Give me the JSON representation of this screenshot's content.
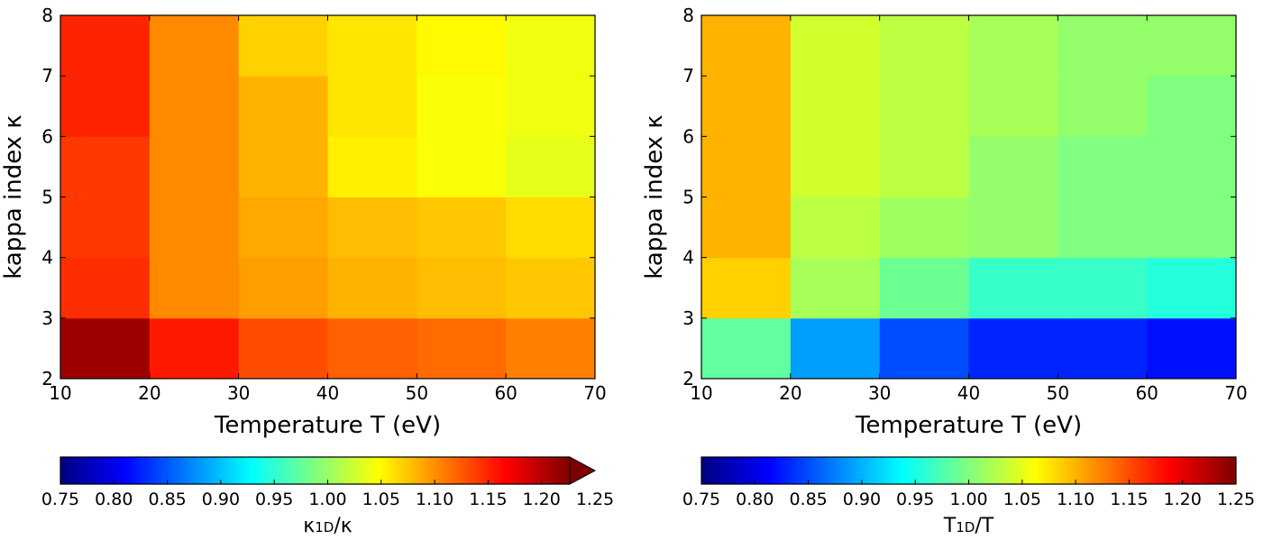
{
  "chart_data": [
    {
      "type": "heatmap",
      "xlabel": "Temperature T (eV)",
      "ylabel": "kappa index κ",
      "x_edges": [
        10,
        20,
        30,
        40,
        50,
        60,
        70
      ],
      "y_edges": [
        2,
        3,
        4,
        5,
        6,
        7,
        8
      ],
      "xlim": [
        10,
        70
      ],
      "ylim": [
        2,
        8
      ],
      "xticks": [
        "10",
        "20",
        "30",
        "40",
        "50",
        "60",
        "70"
      ],
      "yticks": [
        "2",
        "3",
        "4",
        "5",
        "6",
        "7",
        "8"
      ],
      "values": [
        [
          1.235,
          1.175,
          1.15,
          1.14,
          1.135,
          1.125
        ],
        [
          1.165,
          1.12,
          1.11,
          1.1,
          1.095,
          1.09
        ],
        [
          1.16,
          1.12,
          1.105,
          1.095,
          1.09,
          1.08
        ],
        [
          1.16,
          1.12,
          1.1,
          1.07,
          1.06,
          1.05
        ],
        [
          1.17,
          1.12,
          1.1,
          1.075,
          1.06,
          1.055
        ],
        [
          1.17,
          1.12,
          1.085,
          1.075,
          1.065,
          1.055
        ]
      ],
      "colormap": "jet",
      "colorbar": {
        "label_main": "κ",
        "label_sub": "1D",
        "label_tail": "/κ",
        "min": 0.75,
        "max": 1.25,
        "ticks": [
          "0.75",
          "0.80",
          "0.85",
          "0.90",
          "0.95",
          "1.00",
          "1.05",
          "1.10",
          "1.15",
          "1.20",
          "1.25"
        ],
        "extend": "max"
      }
    },
    {
      "type": "heatmap",
      "xlabel": "Temperature T (eV)",
      "ylabel": "kappa index κ",
      "x_edges": [
        10,
        20,
        30,
        40,
        50,
        60,
        70
      ],
      "y_edges": [
        2,
        3,
        4,
        5,
        6,
        7,
        8
      ],
      "xlim": [
        10,
        70
      ],
      "ylim": [
        2,
        8
      ],
      "xticks": [
        "10",
        "20",
        "30",
        "40",
        "50",
        "60",
        "70"
      ],
      "yticks": [
        "2",
        "3",
        "4",
        "5",
        "6",
        "7",
        "8"
      ],
      "values": [
        [
          0.985,
          0.89,
          0.85,
          0.83,
          0.83,
          0.82
        ],
        [
          1.085,
          1.02,
          0.99,
          0.965,
          0.965,
          0.955
        ],
        [
          1.1,
          1.03,
          1.015,
          1.01,
          1.0,
          1.0
        ],
        [
          1.1,
          1.04,
          1.03,
          1.01,
          1.0,
          1.0
        ],
        [
          1.1,
          1.04,
          1.03,
          1.02,
          1.01,
          1.0
        ],
        [
          1.1,
          1.04,
          1.03,
          1.02,
          1.01,
          1.01
        ]
      ],
      "colormap": "jet",
      "colorbar": {
        "label_main": "T",
        "label_sub": "1D",
        "label_tail": "/T",
        "min": 0.75,
        "max": 1.25,
        "ticks": [
          "0.75",
          "0.80",
          "0.85",
          "0.90",
          "0.95",
          "1.00",
          "1.05",
          "1.10",
          "1.15",
          "1.20",
          "1.25"
        ],
        "extend": "neither"
      }
    }
  ]
}
